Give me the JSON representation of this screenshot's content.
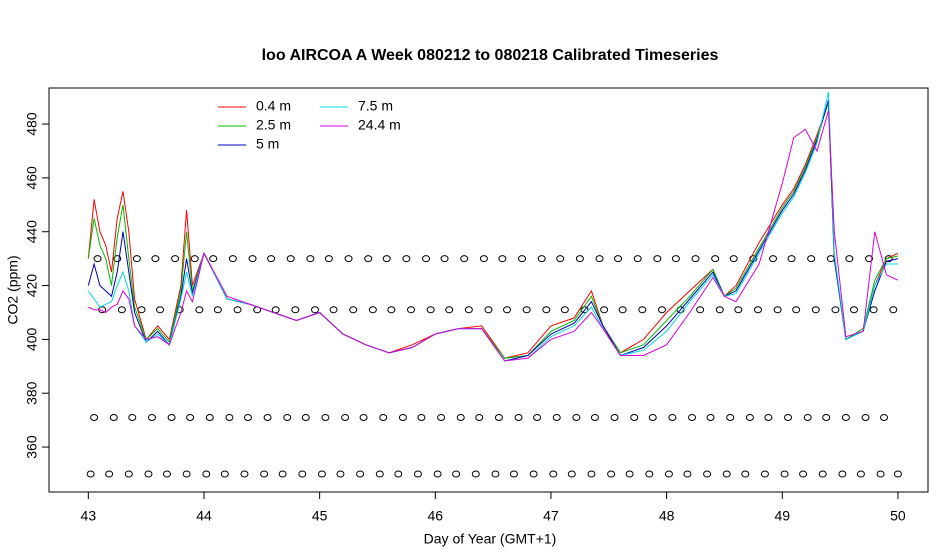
{
  "chart_data": {
    "type": "line",
    "title": "loo AIRCOA A  Week 080212 to 080218  Calibrated Timeseries",
    "x_label": "Day of Year (GMT+1)",
    "y_label": "CO2 (ppm)",
    "xlim": [
      42.66,
      50.26
    ],
    "ylim": [
      343.3,
      493.4
    ],
    "xticks": [
      43,
      44,
      45,
      46,
      47,
      48,
      49,
      50
    ],
    "yticks": [
      360,
      380,
      400,
      420,
      440,
      460,
      480
    ],
    "legend": "top-left",
    "x": [
      43.0,
      43.05,
      43.1,
      43.15,
      43.2,
      43.25,
      43.3,
      43.35,
      43.4,
      43.5,
      43.6,
      43.7,
      43.8,
      43.85,
      43.9,
      44.0,
      44.2,
      44.4,
      44.6,
      44.8,
      45.0,
      45.2,
      45.4,
      45.6,
      45.8,
      46.0,
      46.2,
      46.4,
      46.6,
      46.8,
      47.0,
      47.2,
      47.35,
      47.45,
      47.6,
      47.8,
      48.0,
      48.2,
      48.4,
      48.5,
      48.6,
      48.8,
      49.0,
      49.1,
      49.2,
      49.3,
      49.4,
      49.45,
      49.55,
      49.7,
      49.8,
      49.9,
      50.0
    ],
    "series": [
      {
        "name": "0.4 m",
        "color": "#ff0000",
        "values": [
          430,
          452,
          440,
          435,
          425,
          445,
          455,
          440,
          415,
          400,
          405,
          400,
          420,
          448,
          420,
          432,
          415,
          413,
          410,
          407,
          410,
          402,
          398,
          395,
          398,
          402,
          404,
          405,
          393,
          395,
          405,
          408,
          418,
          405,
          395,
          400,
          410,
          418,
          426,
          416,
          420,
          436,
          450,
          456,
          465,
          476,
          488,
          430,
          400,
          404,
          420,
          430,
          432
        ]
      },
      {
        "name": "2.5 m",
        "color": "#00bb00",
        "values": [
          430,
          445,
          435,
          430,
          420,
          438,
          450,
          430,
          412,
          400,
          404,
          399,
          418,
          440,
          418,
          432,
          415,
          413,
          410,
          407,
          410,
          402,
          398,
          395,
          397,
          402,
          404,
          404,
          393,
          394,
          403,
          407,
          416,
          405,
          395,
          398,
          407,
          416,
          426,
          416,
          419,
          434,
          449,
          455,
          464,
          475,
          488,
          430,
          400,
          404,
          422,
          430,
          431
        ]
      },
      {
        "name": "5 m",
        "color": "#0000bb",
        "values": [
          420,
          428,
          420,
          418,
          416,
          425,
          440,
          425,
          410,
          399,
          403,
          398,
          416,
          430,
          417,
          432,
          415,
          413,
          410,
          407,
          410,
          402,
          398,
          395,
          397,
          402,
          404,
          404,
          392,
          394,
          402,
          406,
          414,
          405,
          394,
          397,
          405,
          415,
          425,
          416,
          418,
          433,
          448,
          454,
          463,
          474,
          489,
          430,
          400,
          403,
          418,
          429,
          430
        ]
      },
      {
        "name": "7.5 m",
        "color": "#00d8e8",
        "values": [
          418,
          415,
          412,
          413,
          414,
          420,
          425,
          418,
          405,
          399,
          402,
          398,
          415,
          425,
          416,
          432,
          415,
          413,
          410,
          407,
          410,
          402,
          398,
          395,
          397,
          402,
          404,
          404,
          392,
          393,
          401,
          405,
          412,
          404,
          394,
          396,
          403,
          414,
          424,
          416,
          417,
          432,
          447,
          453,
          462,
          473,
          492,
          432,
          400,
          403,
          420,
          428,
          428
        ]
      },
      {
        "name": "24.4 m",
        "color": "#dd00dd",
        "values": [
          412,
          411,
          411,
          410,
          412,
          413,
          418,
          415,
          405,
          400,
          401,
          398,
          410,
          418,
          414,
          432,
          416,
          413,
          410,
          407,
          410,
          402,
          398,
          395,
          397,
          402,
          404,
          404,
          392,
          393,
          400,
          403,
          410,
          404,
          394,
          394,
          398,
          410,
          423,
          416,
          414,
          428,
          458,
          475,
          478,
          470,
          485,
          440,
          401,
          403,
          440,
          424,
          422
        ]
      }
    ],
    "standards": [
      {
        "y": 430,
        "x": [
          43.08,
          43.25,
          43.42,
          43.58,
          43.75,
          43.92,
          44.08,
          44.25,
          44.42,
          44.58,
          44.75,
          44.92,
          45.08,
          45.25,
          45.42,
          45.58,
          45.75,
          45.92,
          46.08,
          46.25,
          46.42,
          46.58,
          46.75,
          46.92,
          47.08,
          47.25,
          47.42,
          47.58,
          47.75,
          47.92,
          48.08,
          48.25,
          48.42,
          48.58,
          48.75,
          48.92,
          49.08,
          49.25,
          49.42,
          49.58,
          49.75,
          49.92
        ]
      },
      {
        "y": 411,
        "x": [
          43.12,
          43.29,
          43.46,
          43.62,
          43.79,
          43.96,
          44.12,
          44.29,
          44.46,
          44.62,
          44.79,
          44.96,
          45.12,
          45.29,
          45.46,
          45.62,
          45.79,
          45.96,
          46.12,
          46.29,
          46.46,
          46.62,
          46.79,
          46.96,
          47.12,
          47.29,
          47.46,
          47.62,
          47.79,
          47.96,
          48.12,
          48.29,
          48.46,
          48.62,
          48.79,
          48.96,
          49.12,
          49.29,
          49.46,
          49.62,
          49.79,
          49.96
        ]
      },
      {
        "y": 371,
        "x": [
          43.05,
          43.22,
          43.38,
          43.55,
          43.72,
          43.88,
          44.05,
          44.22,
          44.38,
          44.55,
          44.72,
          44.88,
          45.05,
          45.22,
          45.38,
          45.55,
          45.72,
          45.88,
          46.05,
          46.22,
          46.38,
          46.55,
          46.72,
          46.88,
          47.05,
          47.22,
          47.38,
          47.55,
          47.72,
          47.88,
          48.05,
          48.22,
          48.38,
          48.55,
          48.72,
          48.88,
          49.05,
          49.22,
          49.38,
          49.55,
          49.72,
          49.88
        ]
      },
      {
        "y": 350,
        "x": [
          43.02,
          43.18,
          43.35,
          43.52,
          43.68,
          43.85,
          44.02,
          44.18,
          44.35,
          44.52,
          44.68,
          44.85,
          45.02,
          45.18,
          45.35,
          45.52,
          45.68,
          45.85,
          46.02,
          46.18,
          46.35,
          46.52,
          46.68,
          46.85,
          47.02,
          47.18,
          47.35,
          47.52,
          47.68,
          47.85,
          48.02,
          48.18,
          48.35,
          48.52,
          48.68,
          48.85,
          49.02,
          49.18,
          49.35,
          49.52,
          49.68,
          49.85,
          50.0
        ]
      }
    ]
  }
}
